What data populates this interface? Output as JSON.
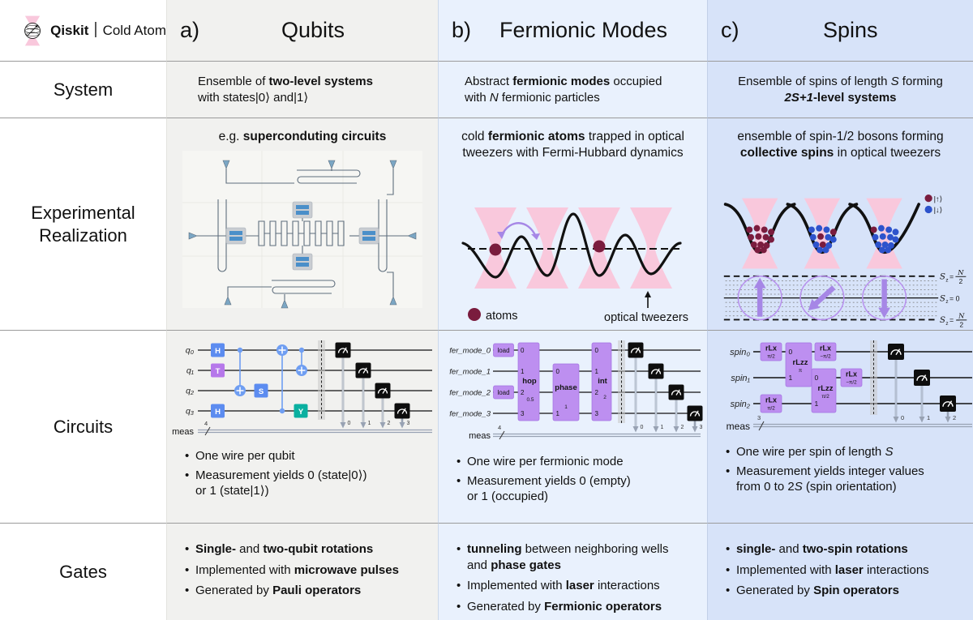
{
  "logo": {
    "brand": "Qiskit",
    "separator": "|",
    "product": "Cold Atom"
  },
  "header": {
    "a_tag": "a)",
    "a_title": "Qubits",
    "b_tag": "b)",
    "b_title": "Fermionic Modes",
    "c_tag": "c)",
    "c_title": "Spins"
  },
  "row_labels": {
    "system": "System",
    "experimental": "Experimental\nRealization",
    "circuits": "Circuits",
    "gates": "Gates"
  },
  "system": {
    "qubits": [
      {
        "t": "Ensemble of "
      },
      {
        "t": "two-level systems",
        "b": 1
      },
      {
        "t": "\nwith states|0⟩ and|1⟩"
      }
    ],
    "fermionic": [
      {
        "t": "Abstract "
      },
      {
        "t": "fermionic modes",
        "b": 1
      },
      {
        "t": " occupied\nwith "
      },
      {
        "t": "N",
        "i": 1
      },
      {
        "t": " fermionic particles"
      }
    ],
    "spins": [
      {
        "t": "Ensemble of spins of length "
      },
      {
        "t": "S",
        "i": 1
      },
      {
        "t": " forming\n"
      },
      {
        "t": "2S+1",
        "b": 1,
        "i": 1
      },
      {
        "t": "-level systems",
        "b": 1
      }
    ]
  },
  "experimental": {
    "qubits_title": [
      {
        "t": "e.g. "
      },
      {
        "t": "superconduting circuits",
        "b": 1
      }
    ],
    "fermionic_title": [
      {
        "t": "cold "
      },
      {
        "t": "fermionic atoms",
        "b": 1
      },
      {
        "t": " trapped in optical\ntweezers with Fermi-Hubbard dynamics"
      }
    ],
    "spins_title": [
      {
        "t": "ensemble of spin-1/2 bosons forming\n"
      },
      {
        "t": "collective spins",
        "b": 1
      },
      {
        "t": " in optical tweezers"
      }
    ],
    "fermionic_legend": {
      "atoms": "atoms",
      "tweezers": "optical tweezers"
    },
    "spins_legend": {
      "up": "|↑⟩",
      "down": "|↓⟩"
    },
    "sz": [
      {
        "s": "S",
        "sub": "z",
        "eq": "=",
        "num": "N",
        "den": "2"
      },
      {
        "s": "S",
        "sub": "z",
        "eq": "= 0"
      },
      {
        "s": "S",
        "sub": "z",
        "eq": "= −",
        "num": "N",
        "den": "2"
      }
    ]
  },
  "circuits": {
    "qubits": {
      "wires": [
        "q₀",
        "q₁",
        "q₂",
        "q₃"
      ],
      "meas": "meas",
      "count": "4",
      "h1": "H",
      "t": "T",
      "s": "S",
      "h2": "H",
      "y": "Y",
      "clbits": [
        "0",
        "1",
        "2",
        "3"
      ],
      "bullets": [
        [
          {
            "t": "One wire per qubit"
          }
        ],
        [
          {
            "t": "Measurement yields 0 (state|0⟩)\nor 1 (state|1⟩)"
          }
        ]
      ]
    },
    "fermionic": {
      "wires": [
        "fer_mode_0",
        "fer_mode_1",
        "fer_mode_2",
        "fer_mode_3"
      ],
      "meas": "meas",
      "count": "4",
      "load": "load",
      "hop": "hop",
      "hop_sub": "0.5",
      "phase": "phase",
      "phase_sub": "1",
      "int_label": "int",
      "int_sub": "2",
      "hop_ports": [
        "0",
        "1",
        "2",
        "3"
      ],
      "phase_ports": [
        "0",
        "1"
      ],
      "int_ports": [
        "0",
        "1",
        "2",
        "3"
      ],
      "clbits": [
        "0",
        "1",
        "2",
        "3"
      ],
      "bullets": [
        [
          {
            "t": "One wire per fermionic mode"
          }
        ],
        [
          {
            "t": "Measurement yields 0 (empty)\nor 1 (occupied)"
          }
        ]
      ]
    },
    "spins": {
      "wires": [
        "spin₀",
        "spin₁",
        "spin₂"
      ],
      "meas": "meas",
      "count": "3",
      "rlx": "rLx",
      "rlzz": "rLzz",
      "sub_p2": "π/2",
      "sub_mp2": "−π/2",
      "sub_p": "π",
      "rlzz1_ports": [
        "0",
        "1"
      ],
      "rlzz2_ports": [
        "0",
        "1"
      ],
      "clbits": [
        "0",
        "1",
        "2"
      ],
      "bullets": [
        [
          {
            "t": "One wire per spin of length "
          },
          {
            "t": "S",
            "i": 1
          }
        ],
        [
          {
            "t": "Measurement yields integer values\nfrom 0 to 2"
          },
          {
            "t": "S",
            "i": 1
          },
          {
            "t": " (spin orientation)"
          }
        ]
      ]
    }
  },
  "gates": {
    "qubits": [
      [
        {
          "t": "Single-",
          "b": 1
        },
        {
          "t": " and "
        },
        {
          "t": "two-qubit rotations",
          "b": 1
        }
      ],
      [
        {
          "t": "Implemented with "
        },
        {
          "t": "microwave pulses",
          "b": 1
        }
      ],
      [
        {
          "t": "Generated by "
        },
        {
          "t": "Pauli operators",
          "b": 1
        }
      ]
    ],
    "fermionic": [
      [
        {
          "t": "tunneling",
          "b": 1
        },
        {
          "t": " between neighboring wells\nand "
        },
        {
          "t": "phase gates",
          "b": 1
        }
      ],
      [
        {
          "t": "Implemented with "
        },
        {
          "t": "laser",
          "b": 1
        },
        {
          "t": " interactions"
        }
      ],
      [
        {
          "t": "Generated by "
        },
        {
          "t": "Fermionic operators",
          "b": 1
        }
      ]
    ],
    "spins": [
      [
        {
          "t": "single-",
          "b": 1
        },
        {
          "t": " and "
        },
        {
          "t": "two-spin rotations",
          "b": 1
        }
      ],
      [
        {
          "t": "Implemented with "
        },
        {
          "t": "laser",
          "b": 1
        },
        {
          "t": " interactions"
        }
      ],
      [
        {
          "t": "Generated by "
        },
        {
          "t": "Spin operators",
          "b": 1
        }
      ]
    ]
  },
  "colors": {
    "pink_tweezer": "#f9c8dc",
    "atom_red": "#7a1c3e",
    "spin_down_blue": "#2d53cc",
    "purple_accent": "#a687e6",
    "gate_blue": "#5c8cf0",
    "gate_purple": "#b678ea",
    "gate_teal": "#0ab0a0",
    "ferm_gate_purple": "#bd8ff0",
    "col_a_bg": "#f1f1ef",
    "col_b_bg": "#e9f1fd",
    "col_c_bg": "#d7e3f9"
  }
}
